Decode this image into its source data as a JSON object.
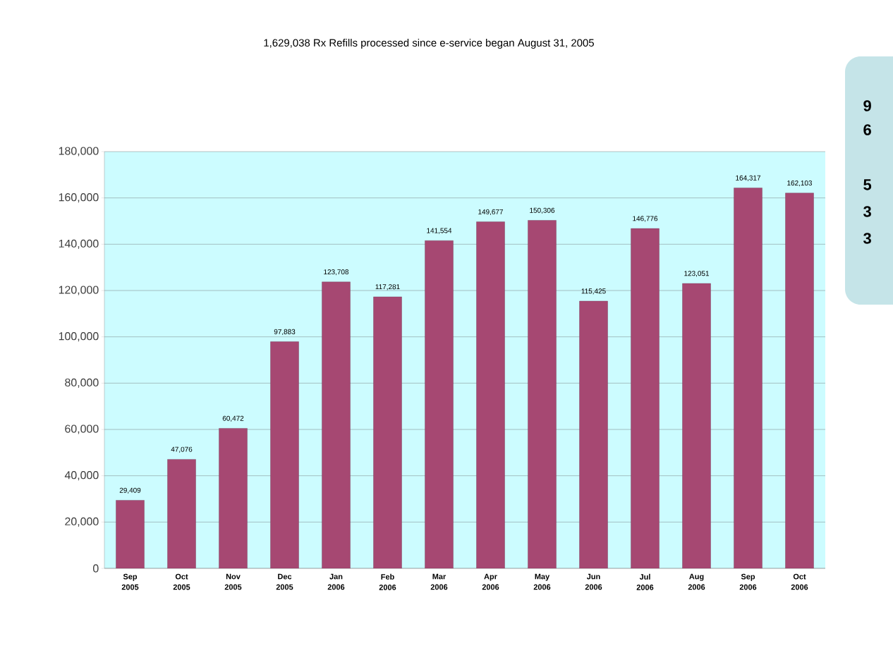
{
  "chart_data": {
    "type": "bar",
    "title": "1,629,038 Rx Refills processed since e-service began August 31, 2005",
    "categories": [
      "Sep 2005",
      "Oct 2005",
      "Nov 2005",
      "Dec 2005",
      "Jan 2006",
      "Feb 2006",
      "Mar 2006",
      "Apr 2006",
      "May 2006",
      "Jun 2006",
      "Jul 2006",
      "Aug 2006",
      "Sep 2006",
      "Oct 2006"
    ],
    "values": [
      29409,
      47076,
      60472,
      97883,
      123708,
      117281,
      141554,
      149677,
      150306,
      115425,
      146776,
      123051,
      164317,
      162103
    ],
    "value_labels": [
      "29,409",
      "47,076",
      "60,472",
      "97,883",
      "123,708",
      "117,281",
      "141,554",
      "149,677",
      "150,306",
      "115,425",
      "146,776",
      "123,051",
      "164,317",
      "162,103"
    ],
    "color": "#a64872",
    "ylim": [
      0,
      180000
    ],
    "yticks": [
      0,
      {
        "value": 20000,
        "label": "20,000"
      },
      {
        "value": 40000,
        "label": "40,000"
      },
      {
        "value": 60000,
        "label": "60,000"
      },
      {
        "value": 80000,
        "label": "80,000"
      },
      {
        "value": 100000,
        "label": "100,000"
      },
      {
        "value": 120000,
        "label": "120,000"
      },
      {
        "value": 140000,
        "label": "140,000"
      },
      {
        "value": 160000,
        "label": "160,000"
      },
      {
        "value": 180000,
        "label": "180,000"
      }
    ],
    "grid": "y",
    "annotations": [
      "9",
      "6",
      "5",
      "3",
      "3"
    ]
  }
}
